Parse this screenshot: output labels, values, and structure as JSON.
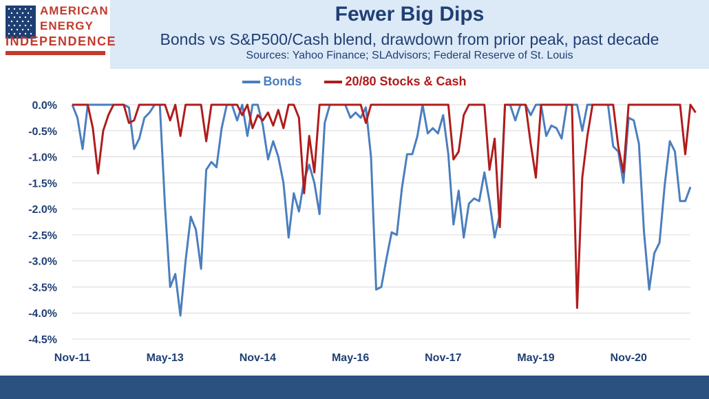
{
  "logo": {
    "line1": "AMERICAN",
    "line2": "ENERGY",
    "line3": "INDEPENDENCE"
  },
  "chart_data": {
    "type": "line",
    "title": "Fewer Big Dips",
    "subtitle": "Bonds vs S&P500/Cash blend, drawdown from prior peak, past decade",
    "sources": "Sources: Yahoo Finance; SLAdvisors; Federal Reserve of St. Louis",
    "legend_position": "top-center",
    "grid": true,
    "ylim": [
      -4.5,
      0.0
    ],
    "y_ticks": [
      "0.0%",
      "-0.5%",
      "-1.0%",
      "-1.5%",
      "-2.0%",
      "-2.5%",
      "-3.0%",
      "-3.5%",
      "-4.0%",
      "-4.5%"
    ],
    "x_ticks": [
      "Nov-11",
      "May-13",
      "Nov-14",
      "May-16",
      "Nov-17",
      "May-19",
      "Nov-20"
    ],
    "x_start": "Nov-11",
    "x_end": "Oct-21",
    "series": [
      {
        "name": "Bonds",
        "color": "#4a7ebf",
        "values": [
          0,
          -0.25,
          -0.85,
          0,
          0,
          0,
          0,
          0,
          0,
          0,
          0,
          -0.05,
          -0.85,
          -0.65,
          -0.25,
          -0.15,
          0,
          0,
          -1.95,
          -3.5,
          -3.25,
          -4.05,
          -3.0,
          -2.15,
          -2.4,
          -3.15,
          -1.25,
          -1.1,
          -1.2,
          -0.45,
          0,
          0,
          -0.3,
          0,
          -0.6,
          0,
          0,
          -0.4,
          -1.05,
          -0.7,
          -1.0,
          -1.5,
          -2.55,
          -1.7,
          -2.05,
          -1.45,
          -1.15,
          -1.5,
          -2.1,
          -0.35,
          0,
          0,
          0,
          0,
          -0.25,
          -0.15,
          -0.25,
          -0.05,
          -1.0,
          -3.55,
          -3.5,
          -2.95,
          -2.45,
          -2.5,
          -1.6,
          -0.95,
          -0.95,
          -0.6,
          0,
          -0.55,
          -0.45,
          -0.55,
          -0.2,
          -0.95,
          -2.3,
          -1.65,
          -2.55,
          -1.9,
          -1.8,
          -1.85,
          -1.3,
          -1.85,
          -2.55,
          -2.1,
          0,
          0,
          -0.3,
          0,
          0,
          -0.2,
          0,
          0,
          -0.6,
          -0.4,
          -0.45,
          -0.65,
          0,
          0,
          0,
          -0.5,
          0,
          0,
          0,
          0,
          0,
          -0.8,
          -0.9,
          -1.5,
          -0.25,
          -0.3,
          -0.75,
          -2.45,
          -3.55,
          -2.85,
          -2.65,
          -1.55,
          -0.7,
          -0.9,
          -1.85,
          -1.85,
          -1.58
        ]
      },
      {
        "name": "20/80 Stocks & Cash",
        "color": "#b01c1c",
        "values": [
          0,
          0,
          0,
          0,
          -0.45,
          -1.32,
          -0.5,
          -0.2,
          0,
          0,
          0,
          -0.35,
          -0.3,
          0,
          0,
          0,
          0,
          0,
          0,
          -0.3,
          0,
          -0.6,
          0,
          0,
          0,
          0,
          -0.7,
          0,
          0,
          0,
          0,
          0,
          0,
          -0.2,
          0,
          -0.45,
          -0.2,
          -0.3,
          -0.15,
          -0.4,
          -0.1,
          -0.45,
          0,
          0,
          -0.25,
          -1.7,
          -0.6,
          -1.3,
          0,
          0,
          0,
          0,
          0,
          0,
          0,
          0,
          0,
          -0.35,
          0,
          0,
          0,
          0,
          0,
          0,
          0,
          0,
          0,
          0,
          0,
          0,
          0,
          0,
          0,
          0,
          -1.05,
          -0.9,
          -0.2,
          0,
          0,
          0,
          0,
          -1.25,
          -0.65,
          -2.35,
          0,
          0,
          0,
          0,
          0,
          -0.75,
          -1.4,
          0,
          0,
          0,
          0,
          0,
          0,
          0,
          -3.9,
          -1.4,
          -0.6,
          0,
          0,
          0,
          0,
          0,
          -0.8,
          -1.3,
          0,
          0,
          0,
          0,
          0,
          0,
          0,
          0,
          0,
          0,
          0,
          -0.95,
          0,
          -0.15
        ]
      }
    ]
  }
}
